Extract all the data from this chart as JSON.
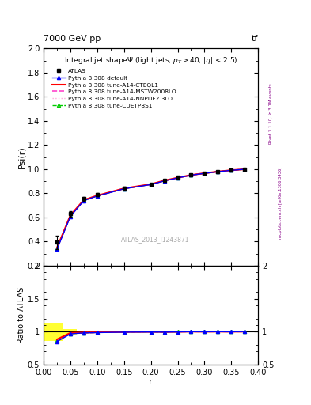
{
  "title_top": "7000 GeV pp",
  "title_right": "tf",
  "right_label1": "Rivet 3.1.10, ≥ 3.1M events",
  "right_label2": "mcplots.cern.ch [arXiv:1306.3436]",
  "plot_title": "Integral jet shapeΨ (light jets, p_{T}>40, |η| < 2.5)",
  "ylabel_main": "Psi(r)",
  "ylabel_ratio": "Ratio to ATLAS",
  "xlabel": "r",
  "atlas_id": "ATLAS_2013_I1243871",
  "r_values": [
    0.025,
    0.05,
    0.075,
    0.1,
    0.15,
    0.2,
    0.225,
    0.25,
    0.275,
    0.3,
    0.325,
    0.35,
    0.375
  ],
  "atlas_data": [
    0.395,
    0.63,
    0.755,
    0.79,
    0.845,
    0.878,
    0.91,
    0.932,
    0.952,
    0.968,
    0.981,
    0.993,
    1.0
  ],
  "pythia_default": [
    0.335,
    0.608,
    0.74,
    0.778,
    0.838,
    0.873,
    0.903,
    0.928,
    0.951,
    0.966,
    0.98,
    0.991,
    1.0
  ],
  "pythia_cteql1": [
    0.348,
    0.618,
    0.745,
    0.782,
    0.841,
    0.876,
    0.906,
    0.93,
    0.952,
    0.967,
    0.981,
    0.992,
    1.0
  ],
  "pythia_mstw": [
    0.342,
    0.613,
    0.742,
    0.78,
    0.84,
    0.875,
    0.905,
    0.929,
    0.951,
    0.967,
    0.98,
    0.991,
    1.0
  ],
  "pythia_nnpdf": [
    0.345,
    0.615,
    0.743,
    0.781,
    0.84,
    0.875,
    0.905,
    0.93,
    0.951,
    0.967,
    0.98,
    0.991,
    1.0
  ],
  "pythia_cuetp": [
    0.342,
    0.612,
    0.741,
    0.779,
    0.839,
    0.874,
    0.904,
    0.929,
    0.951,
    0.966,
    0.98,
    0.991,
    1.0
  ],
  "atlas_err_lo": [
    0.055,
    0.025,
    0.015,
    0.012,
    0.008,
    0.006,
    0.005,
    0.005,
    0.004,
    0.003,
    0.003,
    0.002,
    0.001
  ],
  "atlas_err_hi": [
    0.055,
    0.025,
    0.015,
    0.012,
    0.008,
    0.006,
    0.005,
    0.005,
    0.004,
    0.003,
    0.003,
    0.002,
    0.001
  ],
  "color_default": "#0000ff",
  "color_cteql1": "#ff0000",
  "color_mstw": "#ff44cc",
  "color_nnpdf": "#ffaadd",
  "color_cuetp": "#00cc00",
  "bg_color": "#ffffff",
  "ylim_main": [
    0.2,
    2.0
  ],
  "ylim_ratio": [
    0.5,
    2.0
  ],
  "xlim": [
    0.0,
    0.4
  ],
  "yticks_main": [
    0.2,
    0.4,
    0.6,
    0.8,
    1.0,
    1.2,
    1.4,
    1.6,
    1.8,
    2.0
  ],
  "yticks_ratio": [
    0.5,
    1.0,
    1.5,
    2.0
  ]
}
